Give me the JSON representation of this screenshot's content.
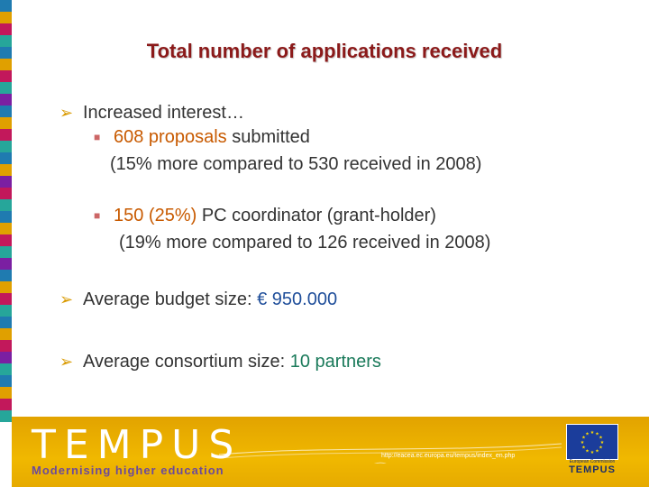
{
  "title": "Total number of applications received",
  "bullets": {
    "b1": "Increased interest…",
    "s1_num": "608 proposals",
    "s1_rest": " submitted",
    "s1_line2": "(15% more compared to 530 received in 2008)",
    "s2_num": "150 (25%)",
    "s2_rest": " PC coordinator (grant-holder)",
    "s2_line2": "(19% more compared to 126 received in 2008)",
    "b2_label": "Average budget size: ",
    "b2_value": "€ 950.000",
    "b3_label": "Average consortium size: ",
    "b3_value": "10 partners"
  },
  "footer": {
    "logo": "TEMPUS",
    "tagline": "Modernising higher education",
    "url": "http://eacea.ec.europa.eu/tempus/index_en.php",
    "eu_caption": "European Commission",
    "eu_tempus": "TEMPUS"
  },
  "colors": {
    "title": "#8b1a1a",
    "accent_orange": "#c85a00",
    "accent_green": "#1a7a5a",
    "accent_blue": "#1f4e9a",
    "footer": "#f0b800"
  },
  "stripe_colors": [
    "#1f7bb0",
    "#e0a000",
    "#c2185b",
    "#26a69a",
    "#1f7bb0",
    "#e0a000",
    "#c2185b",
    "#26a69a",
    "#7b1fa2",
    "#1f7bb0",
    "#e0a000",
    "#c2185b",
    "#26a69a",
    "#1f7bb0",
    "#e0a000",
    "#7b1fa2",
    "#c2185b",
    "#26a69a",
    "#1f7bb0",
    "#e0a000",
    "#c2185b",
    "#26a69a",
    "#7b1fa2",
    "#1f7bb0",
    "#e0a000",
    "#c2185b",
    "#26a69a",
    "#1f7bb0",
    "#e0a000",
    "#c2185b",
    "#7b1fa2",
    "#26a69a",
    "#1f7bb0",
    "#e0a000",
    "#c2185b",
    "#26a69a"
  ]
}
